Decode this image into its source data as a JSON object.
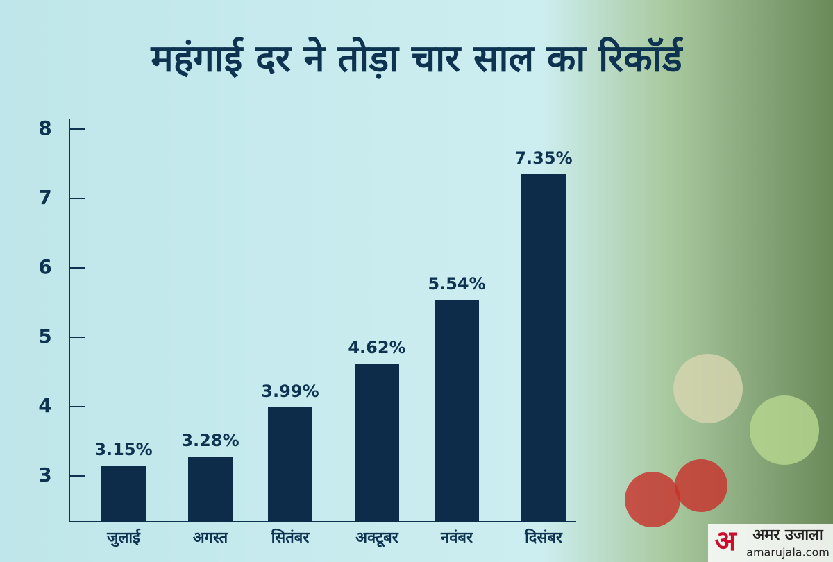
{
  "chart_data": {
    "type": "bar",
    "title": "महंगाई दर ने तोड़ा चार साल का रिकॉर्ड",
    "categories": [
      "जुलाई",
      "अगस्त",
      "सितंबर",
      "अक्टूबर",
      "नवंबर",
      "दिसंबर"
    ],
    "values": [
      3.15,
      3.28,
      3.99,
      4.62,
      5.54,
      7.35
    ],
    "value_labels": [
      "3.15%",
      "3.28%",
      "3.99%",
      "4.62%",
      "5.54%",
      "7.35%"
    ],
    "color": "#0d2c4a",
    "ylim": [
      2.34,
      8.14
    ],
    "yticks": [
      3,
      4,
      5,
      6,
      7,
      8
    ],
    "grid": false
  },
  "logo": {
    "mark": "अ",
    "name": "अमर उजाला",
    "site": "amarujala.com"
  }
}
